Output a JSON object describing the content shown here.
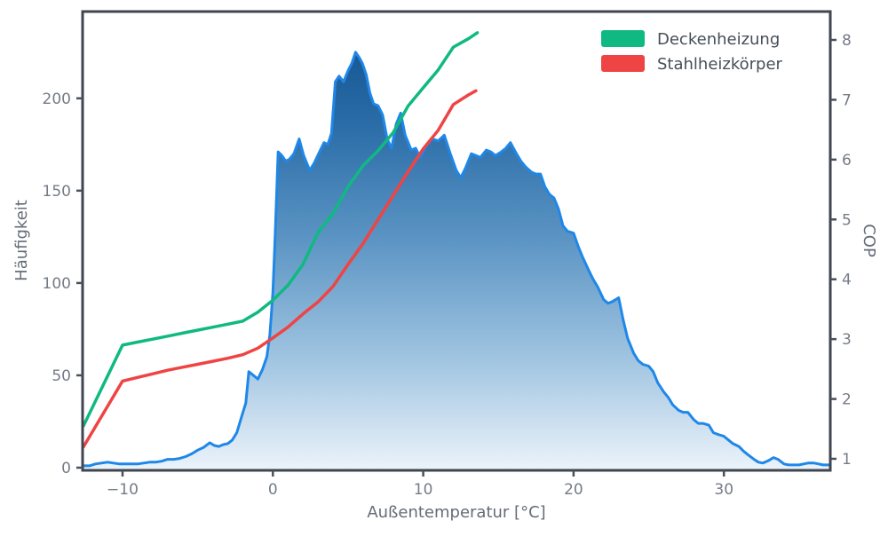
{
  "colors": {
    "background": "#ffffff",
    "hist_line": "#1f87e8",
    "hist_gradient_top": "#0d4e8b",
    "hist_gradient_upper": "#2b6da8",
    "hist_gradient_mid": "#5c95c4",
    "hist_gradient_lower": "#9ec3e0",
    "hist_gradient_bottom": "#ecf3fa",
    "green": "#10b981",
    "red": "#ef4444",
    "spine": "#40454f",
    "tick_mark": "#4a505a",
    "tick_text": "#757c87",
    "axis_label_text": "#656c77",
    "legend_text": "#474e58"
  },
  "legend": {
    "items": [
      {
        "label": "Deckenheizung",
        "color_key": "green"
      },
      {
        "label": "Stahlheizkörper",
        "color_key": "red"
      }
    ]
  },
  "chart_data": {
    "type": "area",
    "title": "",
    "xlabel": "Außentemperatur [°C]",
    "ylabel_left": "Häufigkeit",
    "ylabel_right": "COP",
    "grid": false,
    "legend_position": "upper right",
    "xlim": [
      -12.65,
      37.1
    ],
    "ylim_left": [
      -1.5,
      247
    ],
    "ylim_right": [
      0.8,
      8.47
    ],
    "x_ticks": [
      -10,
      0,
      10,
      20,
      30
    ],
    "x_tick_labels": [
      "−10",
      "0",
      "10",
      "20",
      "30"
    ],
    "left_ticks": [
      0,
      50,
      100,
      150,
      200
    ],
    "left_tick_labels": [
      "0",
      "50",
      "100",
      "150",
      "200"
    ],
    "right_ticks": [
      1,
      2,
      3,
      4,
      5,
      6,
      7,
      8
    ],
    "right_tick_labels": [
      "1",
      "2",
      "3",
      "4",
      "5",
      "6",
      "7",
      "8"
    ],
    "series": [
      {
        "name": "Häufigkeit",
        "axis": "left",
        "style": "area",
        "color_key": "hist_line",
        "points": [
          [
            -12.6,
            1
          ],
          [
            -12.2,
            1
          ],
          [
            -11.8,
            2
          ],
          [
            -11.4,
            2.5
          ],
          [
            -11,
            3
          ],
          [
            -10.6,
            2.5
          ],
          [
            -10.2,
            2
          ],
          [
            -9.8,
            2
          ],
          [
            -9.4,
            2
          ],
          [
            -9,
            2
          ],
          [
            -8.6,
            2.5
          ],
          [
            -8.2,
            3
          ],
          [
            -7.8,
            3
          ],
          [
            -7.4,
            3.5
          ],
          [
            -7,
            4.5
          ],
          [
            -6.6,
            4.5
          ],
          [
            -6.2,
            5
          ],
          [
            -5.8,
            6
          ],
          [
            -5.4,
            7.5
          ],
          [
            -5,
            9.5
          ],
          [
            -4.6,
            11
          ],
          [
            -4.2,
            13.5
          ],
          [
            -3.9,
            12
          ],
          [
            -3.6,
            11.5
          ],
          [
            -3.3,
            12.5
          ],
          [
            -3,
            13
          ],
          [
            -2.7,
            15
          ],
          [
            -2.4,
            19
          ],
          [
            -2.1,
            27
          ],
          [
            -1.8,
            35
          ],
          [
            -1.6,
            52
          ],
          [
            -1.3,
            50
          ],
          [
            -1,
            48
          ],
          [
            -0.7,
            53
          ],
          [
            -0.4,
            60
          ],
          [
            -0.2,
            72
          ],
          [
            0,
            95
          ],
          [
            0.15,
            125
          ],
          [
            0.35,
            171
          ],
          [
            0.6,
            169
          ],
          [
            0.85,
            166
          ],
          [
            1.1,
            167
          ],
          [
            1.4,
            170
          ],
          [
            1.75,
            178
          ],
          [
            2.05,
            169
          ],
          [
            2.45,
            161
          ],
          [
            2.75,
            165
          ],
          [
            3.1,
            171
          ],
          [
            3.4,
            176
          ],
          [
            3.65,
            175
          ],
          [
            3.9,
            181
          ],
          [
            4.15,
            209
          ],
          [
            4.4,
            212
          ],
          [
            4.7,
            209
          ],
          [
            5,
            215
          ],
          [
            5.25,
            219
          ],
          [
            5.5,
            225
          ],
          [
            5.75,
            222
          ],
          [
            5.95,
            219
          ],
          [
            6.2,
            213
          ],
          [
            6.45,
            203
          ],
          [
            6.7,
            197
          ],
          [
            7,
            196
          ],
          [
            7.3,
            191
          ],
          [
            7.6,
            178
          ],
          [
            7.9,
            173
          ],
          [
            8.2,
            186
          ],
          [
            8.5,
            192
          ],
          [
            8.8,
            180
          ],
          [
            9.2,
            172
          ],
          [
            9.5,
            173
          ],
          [
            9.8,
            168
          ],
          [
            10.2,
            174
          ],
          [
            10.6,
            178
          ],
          [
            11,
            177
          ],
          [
            11.4,
            180
          ],
          [
            11.8,
            170
          ],
          [
            12.2,
            161
          ],
          [
            12.5,
            157
          ],
          [
            12.8,
            162
          ],
          [
            13.2,
            170
          ],
          [
            13.5,
            169
          ],
          [
            13.8,
            168
          ],
          [
            14.2,
            172
          ],
          [
            14.5,
            171
          ],
          [
            14.8,
            169
          ],
          [
            15.2,
            171
          ],
          [
            15.5,
            173
          ],
          [
            15.8,
            176
          ],
          [
            16.2,
            170
          ],
          [
            16.5,
            166
          ],
          [
            16.8,
            163
          ],
          [
            17.2,
            160
          ],
          [
            17.5,
            159
          ],
          [
            17.8,
            159
          ],
          [
            18.1,
            152
          ],
          [
            18.4,
            148
          ],
          [
            18.7,
            146
          ],
          [
            19,
            140
          ],
          [
            19.3,
            131
          ],
          [
            19.6,
            128
          ],
          [
            20,
            127
          ],
          [
            20.3,
            120
          ],
          [
            20.6,
            114
          ],
          [
            21,
            107
          ],
          [
            21.3,
            102
          ],
          [
            21.6,
            98
          ],
          [
            22,
            91
          ],
          [
            22.3,
            89
          ],
          [
            22.6,
            90
          ],
          [
            23,
            92
          ],
          [
            23.3,
            80
          ],
          [
            23.6,
            70
          ],
          [
            24,
            62
          ],
          [
            24.3,
            58
          ],
          [
            24.6,
            56
          ],
          [
            25,
            55
          ],
          [
            25.3,
            52
          ],
          [
            25.6,
            46
          ],
          [
            26,
            41
          ],
          [
            26.3,
            38
          ],
          [
            26.6,
            34
          ],
          [
            27,
            31
          ],
          [
            27.3,
            30
          ],
          [
            27.6,
            30
          ],
          [
            28,
            26
          ],
          [
            28.3,
            24
          ],
          [
            28.6,
            24
          ],
          [
            29,
            23
          ],
          [
            29.3,
            19
          ],
          [
            29.6,
            18
          ],
          [
            30,
            17
          ],
          [
            30.3,
            15
          ],
          [
            30.6,
            13
          ],
          [
            31,
            11.5
          ],
          [
            31.3,
            9
          ],
          [
            31.6,
            7
          ],
          [
            32,
            4.5
          ],
          [
            32.3,
            3
          ],
          [
            32.6,
            2.5
          ],
          [
            33,
            4
          ],
          [
            33.3,
            5.5
          ],
          [
            33.6,
            4.5
          ],
          [
            34,
            2
          ],
          [
            34.3,
            1.5
          ],
          [
            34.6,
            1.5
          ],
          [
            35,
            1.5
          ],
          [
            35.3,
            2
          ],
          [
            35.6,
            2.5
          ],
          [
            36,
            2.5
          ],
          [
            36.3,
            2
          ],
          [
            36.6,
            1.5
          ],
          [
            37.1,
            1.5
          ]
        ]
      },
      {
        "name": "Deckenheizung",
        "axis": "right",
        "style": "line",
        "color_key": "green",
        "points": [
          [
            -12.6,
            1.55
          ],
          [
            -10,
            2.9
          ],
          [
            -9,
            2.95
          ],
          [
            -8,
            3.0
          ],
          [
            -7,
            3.05
          ],
          [
            -6,
            3.1
          ],
          [
            -5,
            3.15
          ],
          [
            -4,
            3.2
          ],
          [
            -3,
            3.25
          ],
          [
            -2,
            3.3
          ],
          [
            -1,
            3.45
          ],
          [
            0,
            3.65
          ],
          [
            1,
            3.9
          ],
          [
            2,
            4.25
          ],
          [
            3,
            4.78
          ],
          [
            4,
            5.1
          ],
          [
            5,
            5.55
          ],
          [
            6,
            5.9
          ],
          [
            7,
            6.15
          ],
          [
            8,
            6.45
          ],
          [
            9,
            6.9
          ],
          [
            10,
            7.2
          ],
          [
            11,
            7.5
          ],
          [
            12,
            7.88
          ],
          [
            13,
            8.02
          ],
          [
            13.6,
            8.12
          ]
        ]
      },
      {
        "name": "Stahlheizkörper",
        "axis": "right",
        "style": "line",
        "color_key": "red",
        "points": [
          [
            -12.6,
            1.2
          ],
          [
            -10,
            2.3
          ],
          [
            -9,
            2.36
          ],
          [
            -8,
            2.42
          ],
          [
            -7,
            2.48
          ],
          [
            -6,
            2.53
          ],
          [
            -5,
            2.58
          ],
          [
            -4,
            2.63
          ],
          [
            -3,
            2.68
          ],
          [
            -2,
            2.74
          ],
          [
            -1,
            2.85
          ],
          [
            0,
            3.02
          ],
          [
            1,
            3.2
          ],
          [
            2,
            3.42
          ],
          [
            3,
            3.62
          ],
          [
            4,
            3.88
          ],
          [
            5,
            4.25
          ],
          [
            6,
            4.6
          ],
          [
            7,
            5.0
          ],
          [
            8,
            5.4
          ],
          [
            9,
            5.8
          ],
          [
            10,
            6.18
          ],
          [
            11,
            6.49
          ],
          [
            12,
            6.92
          ],
          [
            13,
            7.08
          ],
          [
            13.5,
            7.15
          ]
        ]
      }
    ]
  }
}
